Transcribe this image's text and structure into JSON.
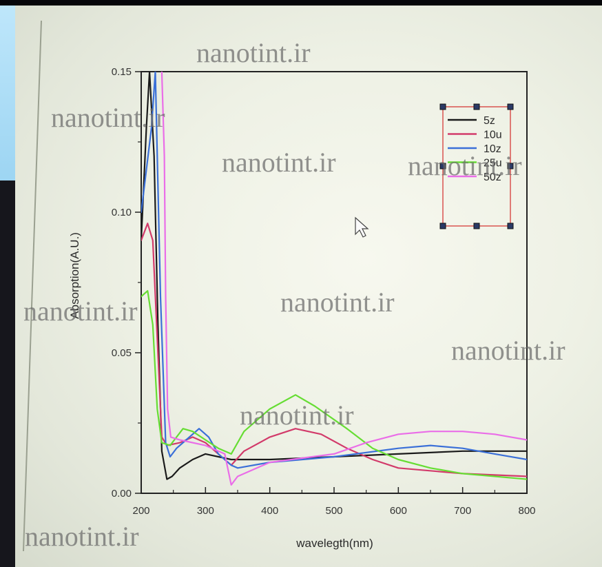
{
  "watermark": {
    "text": "nanotint.ir"
  },
  "chart_data": {
    "type": "line",
    "title": "",
    "xlabel": "wavelegth(nm)",
    "ylabel": "Absorption(A.U.)",
    "xlim": [
      200,
      800
    ],
    "ylim": [
      0,
      0.15
    ],
    "x_ticks": [
      200,
      300,
      400,
      500,
      600,
      700,
      800
    ],
    "y_ticks": [
      0.0,
      0.05,
      0.1,
      0.15
    ],
    "y_tick_labels": [
      "0.00",
      "0.05",
      "0.10",
      "0.15"
    ],
    "legend_position": "top-right",
    "series": [
      {
        "name": "5z",
        "color": "#1a1a1a",
        "points": [
          [
            200,
            0.09
          ],
          [
            208,
            0.13
          ],
          [
            213,
            0.15
          ],
          [
            220,
            0.12
          ],
          [
            226,
            0.06
          ],
          [
            232,
            0.015
          ],
          [
            240,
            0.005
          ],
          [
            248,
            0.006
          ],
          [
            260,
            0.009
          ],
          [
            280,
            0.012
          ],
          [
            300,
            0.014
          ],
          [
            340,
            0.012
          ],
          [
            400,
            0.012
          ],
          [
            500,
            0.013
          ],
          [
            600,
            0.014
          ],
          [
            700,
            0.015
          ],
          [
            800,
            0.015
          ]
        ]
      },
      {
        "name": "10u",
        "color": "#d23a6a",
        "points": [
          [
            200,
            0.09
          ],
          [
            210,
            0.096
          ],
          [
            218,
            0.09
          ],
          [
            226,
            0.05
          ],
          [
            232,
            0.02
          ],
          [
            240,
            0.017
          ],
          [
            260,
            0.018
          ],
          [
            280,
            0.02
          ],
          [
            300,
            0.018
          ],
          [
            320,
            0.014
          ],
          [
            340,
            0.01
          ],
          [
            360,
            0.015
          ],
          [
            400,
            0.02
          ],
          [
            440,
            0.023
          ],
          [
            480,
            0.021
          ],
          [
            520,
            0.016
          ],
          [
            560,
            0.012
          ],
          [
            600,
            0.009
          ],
          [
            700,
            0.007
          ],
          [
            800,
            0.006
          ]
        ]
      },
      {
        "name": "10z",
        "color": "#3a6fd8",
        "points": [
          [
            200,
            0.1
          ],
          [
            216,
            0.13
          ],
          [
            222,
            0.15
          ],
          [
            230,
            0.07
          ],
          [
            238,
            0.018
          ],
          [
            245,
            0.013
          ],
          [
            255,
            0.016
          ],
          [
            270,
            0.019
          ],
          [
            290,
            0.023
          ],
          [
            305,
            0.02
          ],
          [
            320,
            0.014
          ],
          [
            340,
            0.01
          ],
          [
            350,
            0.009
          ],
          [
            400,
            0.011
          ],
          [
            500,
            0.013
          ],
          [
            600,
            0.016
          ],
          [
            650,
            0.017
          ],
          [
            700,
            0.016
          ],
          [
            750,
            0.014
          ],
          [
            800,
            0.012
          ]
        ]
      },
      {
        "name": "25u",
        "color": "#66dd33",
        "points": [
          [
            200,
            0.07
          ],
          [
            210,
            0.072
          ],
          [
            218,
            0.06
          ],
          [
            225,
            0.03
          ],
          [
            232,
            0.018
          ],
          [
            245,
            0.017
          ],
          [
            255,
            0.02
          ],
          [
            265,
            0.023
          ],
          [
            280,
            0.022
          ],
          [
            300,
            0.019
          ],
          [
            320,
            0.016
          ],
          [
            340,
            0.014
          ],
          [
            360,
            0.022
          ],
          [
            400,
            0.03
          ],
          [
            440,
            0.035
          ],
          [
            470,
            0.031
          ],
          [
            520,
            0.023
          ],
          [
            560,
            0.016
          ],
          [
            600,
            0.012
          ],
          [
            650,
            0.009
          ],
          [
            700,
            0.007
          ],
          [
            800,
            0.005
          ]
        ]
      },
      {
        "name": "50z",
        "color": "#ea6de8",
        "points": [
          [
            232,
            0.15
          ],
          [
            236,
            0.12
          ],
          [
            238,
            0.07
          ],
          [
            241,
            0.03
          ],
          [
            246,
            0.02
          ],
          [
            260,
            0.019
          ],
          [
            300,
            0.017
          ],
          [
            330,
            0.014
          ],
          [
            340,
            0.003
          ],
          [
            350,
            0.006
          ],
          [
            400,
            0.011
          ],
          [
            500,
            0.014
          ],
          [
            550,
            0.018
          ],
          [
            600,
            0.021
          ],
          [
            650,
            0.022
          ],
          [
            700,
            0.022
          ],
          [
            750,
            0.021
          ],
          [
            800,
            0.019
          ]
        ]
      }
    ]
  }
}
